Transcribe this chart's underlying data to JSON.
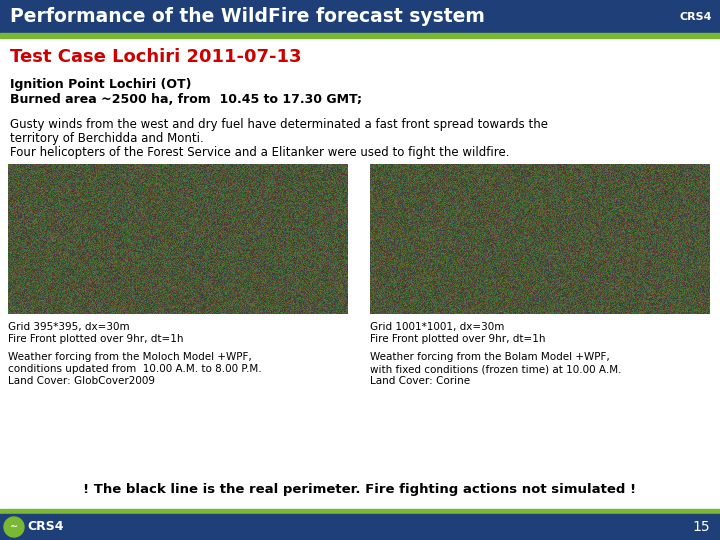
{
  "title": "Performance of the WildFire forecast system",
  "title_right": "CRS4",
  "header_bg": "#1e3f78",
  "header_text_color": "#ffffff",
  "accent_bar_color": "#7ab833",
  "body_bg": "#ffffff",
  "footer_bg": "#1e3f78",
  "footer_text": "15",
  "footer_logo_text": "CRS4",
  "subtitle": "Test Case Lochiri 2011-07-13",
  "subtitle_color": "#cc0000",
  "bold_text1": "Ignition Point Lochiri (OT)",
  "bold_text2": "Burned area ~2500 ha, from  10.45 to 17.30 GMT;",
  "desc_text1": "Gusty winds from the west and dry fuel have determinated a fast front spread towards the",
  "desc_text2": "territory of Berchidda and Monti.",
  "desc_text3": "Four helicopters of the Forest Service and a Elitanker were used to fight the wildfire.",
  "img_caption_left1": "Grid 395*395, dx=30m",
  "img_caption_left2": "Fire Front plotted over 9hr, dt=1h",
  "img_caption_left3": "Weather forcing from the Moloch Model +WPF,",
  "img_caption_left4": "conditions updated from  10.00 A.M. to 8.00 P.M.",
  "img_caption_left5": "Land Cover: GlobCover2009",
  "img_caption_right1": "Grid 1001*1001, dx=30m",
  "img_caption_right2": "Fire Front plotted over 9hr, dt=1h",
  "img_caption_right3": "Weather forcing from the Bolam Model +WPF,",
  "img_caption_right4": "with fixed conditions (frozen time) at 10.00 A.M.",
  "img_caption_right5": "Land Cover: Corine",
  "bottom_note": "! The black line is the real perimeter. Fire fighting actions not simulated !"
}
